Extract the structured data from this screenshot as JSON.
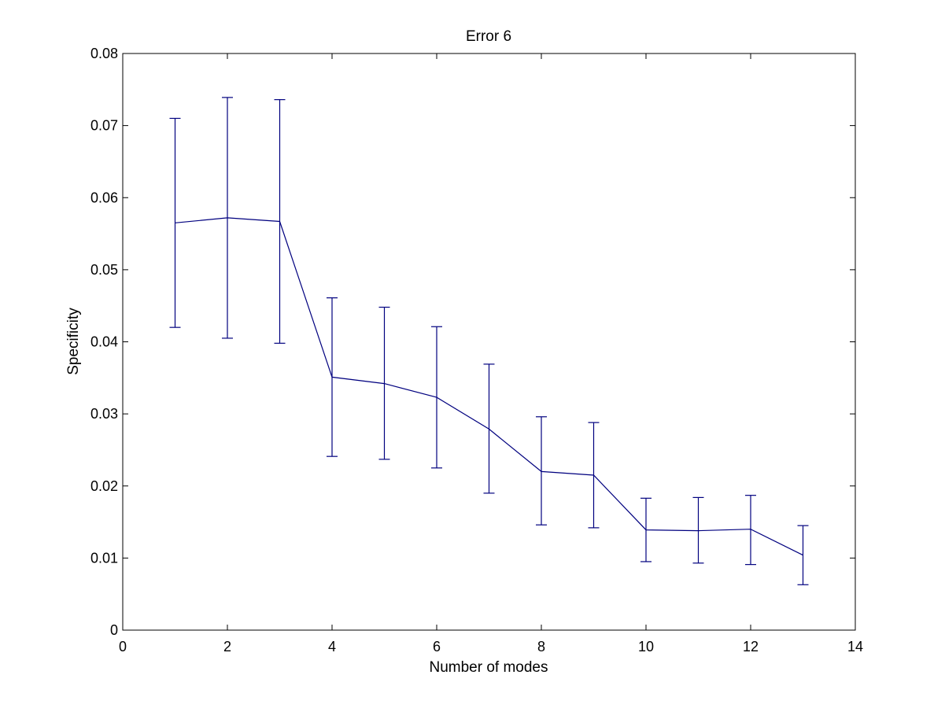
{
  "chart_data": {
    "type": "line",
    "title": "Error 6",
    "xlabel": "Number of modes",
    "ylabel": "Specificity",
    "xlim": [
      0,
      14
    ],
    "ylim": [
      0,
      0.08
    ],
    "xticks": [
      "0",
      "2",
      "4",
      "6",
      "8",
      "10",
      "12",
      "14"
    ],
    "yticks": [
      "0",
      "0.01",
      "0.02",
      "0.03",
      "0.04",
      "0.05",
      "0.06",
      "0.07",
      "0.08"
    ],
    "grid": false,
    "legend": "none",
    "series": [
      {
        "color": "#00007f",
        "error_bars": true,
        "x": [
          1,
          2,
          3,
          4,
          5,
          6,
          7,
          8,
          9,
          10,
          11,
          12,
          13
        ],
        "y": [
          0.0565,
          0.0572,
          0.0567,
          0.0351,
          0.0342,
          0.0323,
          0.0279,
          0.022,
          0.0215,
          0.0139,
          0.0138,
          0.014,
          0.0104
        ],
        "lower": [
          0.042,
          0.0405,
          0.0398,
          0.0241,
          0.0237,
          0.0225,
          0.019,
          0.0146,
          0.0142,
          0.0095,
          0.0093,
          0.0091,
          0.0063
        ],
        "upper": [
          0.071,
          0.0739,
          0.0736,
          0.0461,
          0.0448,
          0.0421,
          0.0369,
          0.0296,
          0.0288,
          0.0183,
          0.0184,
          0.0187,
          0.0145
        ]
      }
    ]
  }
}
